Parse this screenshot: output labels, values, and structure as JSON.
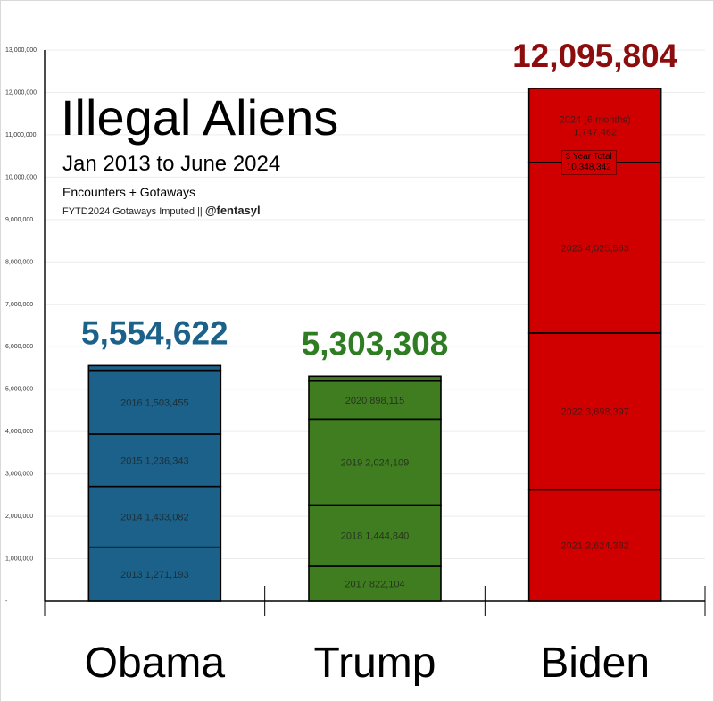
{
  "title": "Illegal Aliens",
  "subtitle": "Jan 2013 to June 2024",
  "subtitle2": "Encounters + Gotaways",
  "credit_note": "FYTD2024 Gotaways Imputed",
  "credit_sep": "||",
  "credit_handle": "@fentasyl",
  "callout": {
    "line1": "3 Year Total",
    "line2": "10,348,342"
  },
  "chart_data": {
    "type": "bar",
    "stacked": true,
    "categories": [
      "Obama",
      "Trump",
      "Biden"
    ],
    "totals": [
      "5,554,622",
      "5,303,308",
      "12,095,804"
    ],
    "total_values": [
      5554622,
      5303308,
      12095804
    ],
    "colors": [
      "#1b6189",
      "#3f7d20",
      "#d10000"
    ],
    "total_colors": [
      "#1b6189",
      "#2e7d22",
      "#8b0d0d"
    ],
    "ylim": [
      0,
      13000000
    ],
    "yticks": [
      {
        "value": 0,
        "label": "-"
      },
      {
        "value": 1000000,
        "label": "1,000,000"
      },
      {
        "value": 2000000,
        "label": "2,000,000"
      },
      {
        "value": 3000000,
        "label": "3,000,000"
      },
      {
        "value": 4000000,
        "label": "4,000,000"
      },
      {
        "value": 5000000,
        "label": "5,000,000"
      },
      {
        "value": 6000000,
        "label": "6,000,000"
      },
      {
        "value": 7000000,
        "label": "7,000,000"
      },
      {
        "value": 8000000,
        "label": "8,000,000"
      },
      {
        "value": 9000000,
        "label": "9,000,000"
      },
      {
        "value": 10000000,
        "label": "10,000,000"
      },
      {
        "value": 11000000,
        "label": "11,000,000"
      },
      {
        "value": 12000000,
        "label": "12,000,000"
      },
      {
        "value": 13000000,
        "label": "13,000,000"
      }
    ],
    "stacks": [
      [
        {
          "label": "2013  1,271,193",
          "value": 1271193
        },
        {
          "label": "2014  1,433,082",
          "value": 1433082
        },
        {
          "label": "2015  1,236,343",
          "value": 1236343
        },
        {
          "label": "2016  1,503,455",
          "value": 1503455
        },
        {
          "label": "",
          "value": 110549
        }
      ],
      [
        {
          "label": "2017  822,104",
          "value": 822104
        },
        {
          "label": "2018  1,444,840",
          "value": 1444840
        },
        {
          "label": "2019  2,024,109",
          "value": 2024109
        },
        {
          "label": "2020  898,115",
          "value": 898115
        },
        {
          "label": "",
          "value": 114140
        }
      ],
      [
        {
          "label": "2021  2,624,382",
          "value": 2624382
        },
        {
          "label": "2022  3,698,397",
          "value": 3698397
        },
        {
          "label": "2023  4,025,563",
          "value": 4025563
        },
        {
          "label": "2024 (6 months)\n1,747,462",
          "value": 1747462
        }
      ]
    ]
  }
}
